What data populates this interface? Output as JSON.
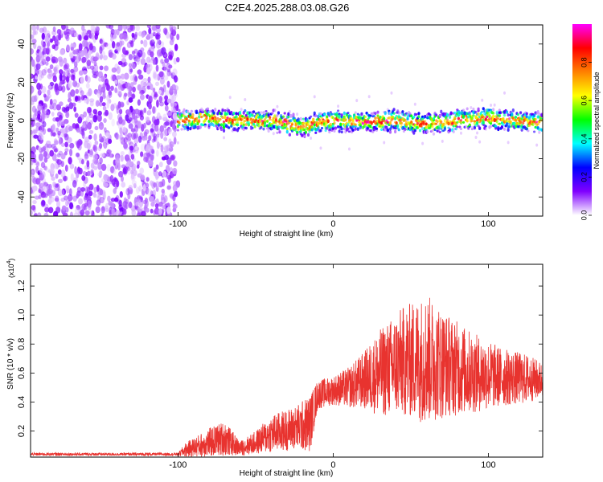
{
  "title": "C2E4.2025.288.03.08.G26",
  "chart_data": [
    {
      "type": "heatmap",
      "name": "spectrogram",
      "xlabel": "Height of straight line (km)",
      "ylabel": "Frequency (Hz)",
      "xlim": [
        -195,
        135
      ],
      "ylim": [
        -50,
        50
      ],
      "xticks": [
        -100,
        0,
        100
      ],
      "xtick_labels": [
        "-100",
        "0",
        "100"
      ],
      "yticks": [
        -40,
        -20,
        0,
        20,
        40
      ],
      "ytick_labels": [
        "-40",
        "-20",
        "0",
        "20",
        "40"
      ],
      "noise_region_x": [
        -195,
        -100
      ],
      "signal_start_x": -100,
      "signal_center_hz": [
        {
          "x": -100,
          "y": 0
        },
        {
          "x": -80,
          "y": 1
        },
        {
          "x": -60,
          "y": 0
        },
        {
          "x": -40,
          "y": 0
        },
        {
          "x": -20,
          "y": -3
        },
        {
          "x": 0,
          "y": 0
        },
        {
          "x": 20,
          "y": -1
        },
        {
          "x": 40,
          "y": 0
        },
        {
          "x": 60,
          "y": -2
        },
        {
          "x": 80,
          "y": 0
        },
        {
          "x": 100,
          "y": 1
        },
        {
          "x": 120,
          "y": 0
        },
        {
          "x": 135,
          "y": -1
        }
      ],
      "colorbar": {
        "label": "Normalized spectral amplitude",
        "range": [
          0,
          1
        ],
        "ticks": [
          0.0,
          0.2,
          0.4,
          0.6,
          0.8
        ],
        "tick_labels": [
          "0.0",
          "0.2",
          "0.4",
          "0.6",
          "0.8"
        ],
        "colors": [
          "#ffffff",
          "#8000ff",
          "#0000ff",
          "#00ffff",
          "#00ff00",
          "#ffff00",
          "#ff8000",
          "#ff0000",
          "#ff00ff"
        ]
      }
    },
    {
      "type": "line",
      "name": "snr",
      "xlabel": "Height of straight line (km)",
      "ylabel": "SNR (10 * v/v)",
      "y_scale_label": "(x10",
      "y_scale_exp": "4",
      "y_scale_close": ")",
      "xlim": [
        -195,
        135
      ],
      "ylim": [
        0.02,
        1.35
      ],
      "xticks": [
        -100,
        0,
        100
      ],
      "xtick_labels": [
        "-100",
        "0",
        "100"
      ],
      "yticks": [
        0.2,
        0.4,
        0.6,
        0.8,
        1.0,
        1.2
      ],
      "ytick_labels": [
        "0.2",
        "0.4",
        "0.6",
        "0.8",
        "1.0",
        "1.2"
      ],
      "color": "#e8332f",
      "envelope": [
        {
          "x": -195,
          "mean": 0.04,
          "amp": 0.01
        },
        {
          "x": -100,
          "mean": 0.04,
          "amp": 0.01
        },
        {
          "x": -95,
          "mean": 0.07,
          "amp": 0.05
        },
        {
          "x": -80,
          "mean": 0.12,
          "amp": 0.1
        },
        {
          "x": -70,
          "mean": 0.15,
          "amp": 0.12
        },
        {
          "x": -60,
          "mean": 0.08,
          "amp": 0.05
        },
        {
          "x": -50,
          "mean": 0.12,
          "amp": 0.08
        },
        {
          "x": -40,
          "mean": 0.18,
          "amp": 0.13
        },
        {
          "x": -25,
          "mean": 0.22,
          "amp": 0.15
        },
        {
          "x": -15,
          "mean": 0.25,
          "amp": 0.2
        },
        {
          "x": -10,
          "mean": 0.45,
          "amp": 0.1
        },
        {
          "x": 0,
          "mean": 0.48,
          "amp": 0.1
        },
        {
          "x": 10,
          "mean": 0.5,
          "amp": 0.14
        },
        {
          "x": 20,
          "mean": 0.55,
          "amp": 0.2
        },
        {
          "x": 30,
          "mean": 0.6,
          "amp": 0.3
        },
        {
          "x": 45,
          "mean": 0.68,
          "amp": 0.38
        },
        {
          "x": 60,
          "mean": 0.7,
          "amp": 0.45
        },
        {
          "x": 75,
          "mean": 0.65,
          "amp": 0.35
        },
        {
          "x": 90,
          "mean": 0.6,
          "amp": 0.28
        },
        {
          "x": 110,
          "mean": 0.57,
          "amp": 0.2
        },
        {
          "x": 125,
          "mean": 0.56,
          "amp": 0.17
        },
        {
          "x": 135,
          "mean": 0.55,
          "amp": 0.12
        }
      ]
    }
  ]
}
